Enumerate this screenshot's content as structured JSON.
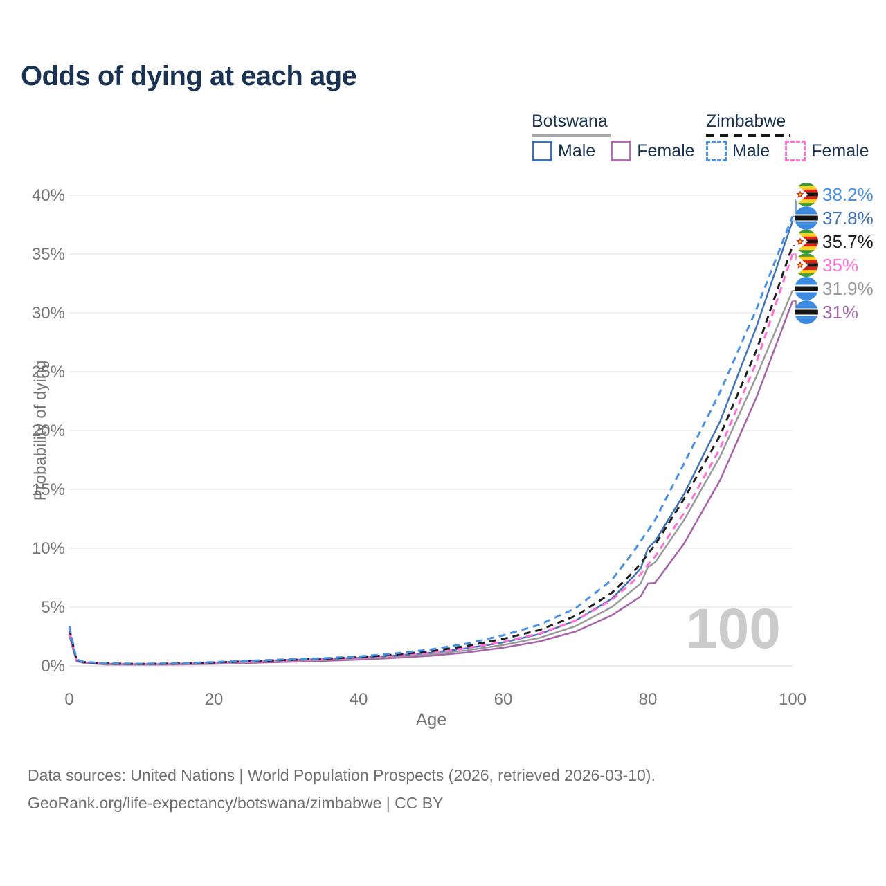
{
  "title": "Odds of dying at each age",
  "legend": {
    "groups": [
      {
        "country": "Botswana",
        "style": "solid",
        "items": [
          {
            "label": "Male",
            "color": "#4173b4"
          },
          {
            "label": "Female",
            "color": "#b070b0"
          }
        ]
      },
      {
        "country": "Zimbabwe",
        "style": "dashed",
        "items": [
          {
            "label": "Male",
            "color": "#4a90e2"
          },
          {
            "label": "Female",
            "color": "#ff6fd8"
          }
        ]
      }
    ]
  },
  "axes": {
    "y_title": "Probability of dying",
    "x_title": "Age",
    "y_ticks": [
      "0%",
      "5%",
      "10%",
      "15%",
      "20%",
      "25%",
      "30%",
      "35%",
      "40%"
    ],
    "x_ticks": [
      "0",
      "20",
      "40",
      "60",
      "80",
      "100"
    ]
  },
  "watermark": "100",
  "end_labels": [
    {
      "text": "38.2%",
      "value": 38.2,
      "color": "#4a90e2",
      "flag": "zimbabwe",
      "series": "Zimbabwe Male"
    },
    {
      "text": "37.8%",
      "value": 37.8,
      "color": "#4173b4",
      "flag": "botswana",
      "series": "Botswana Male"
    },
    {
      "text": "35.7%",
      "value": 35.7,
      "color": "#1f1f1f",
      "flag": "zimbabwe",
      "series": "Zimbabwe"
    },
    {
      "text": "35%",
      "value": 35.0,
      "color": "#ff6fd8",
      "flag": "zimbabwe",
      "series": "Zimbabwe Female"
    },
    {
      "text": "31.9%",
      "value": 31.9,
      "color": "#9a9a9a",
      "flag": "botswana",
      "series": "Botswana"
    },
    {
      "text": "31%",
      "value": 31.0,
      "color": "#a763a9",
      "flag": "botswana",
      "series": "Botswana Female"
    }
  ],
  "footer": {
    "line1": "Data sources: United Nations | World Population Prospects (2026, retrieved 2026-03-10).",
    "line2": "GeoRank.org/life-expectancy/botswana/zimbabwe | CC BY"
  },
  "chart_data": {
    "type": "line",
    "title": "Odds of dying at each age",
    "xlabel": "Age",
    "ylabel": "Probability of dying",
    "xlim": [
      0,
      100
    ],
    "ylim": [
      0,
      40
    ],
    "y_unit": "%",
    "x_ticks": [
      0,
      20,
      40,
      60,
      80,
      100
    ],
    "y_ticks_pct": [
      0,
      5,
      10,
      15,
      20,
      25,
      30,
      35,
      40
    ],
    "grid": true,
    "legend_position": "top-right",
    "ages": [
      0,
      1,
      2,
      5,
      10,
      15,
      20,
      25,
      30,
      35,
      40,
      45,
      50,
      55,
      60,
      65,
      70,
      75,
      78,
      79,
      80,
      81,
      85,
      90,
      95,
      100
    ],
    "series": [
      {
        "name": "Botswana Female",
        "country": "Botswana",
        "style": "solid",
        "color": "#a763a9",
        "values": [
          2.6,
          0.4,
          0.25,
          0.12,
          0.1,
          0.12,
          0.17,
          0.25,
          0.34,
          0.42,
          0.53,
          0.68,
          0.86,
          1.14,
          1.55,
          2.08,
          2.92,
          4.3,
          5.5,
          5.9,
          7.0,
          7.05,
          10.4,
          15.8,
          22.8,
          31.0
        ]
      },
      {
        "name": "Botswana",
        "country": "Botswana",
        "style": "solid",
        "color": "#9a9a9a",
        "values": [
          2.8,
          0.44,
          0.27,
          0.14,
          0.12,
          0.15,
          0.22,
          0.32,
          0.42,
          0.5,
          0.62,
          0.78,
          1.0,
          1.32,
          1.78,
          2.38,
          3.38,
          5.0,
          6.5,
          7.0,
          8.4,
          8.8,
          12.4,
          17.8,
          24.6,
          31.9
        ]
      },
      {
        "name": "Botswana Male",
        "country": "Botswana",
        "style": "solid",
        "color": "#4173b4",
        "values": [
          3.0,
          0.48,
          0.3,
          0.17,
          0.14,
          0.18,
          0.28,
          0.4,
          0.5,
          0.58,
          0.7,
          0.88,
          1.12,
          1.5,
          2.0,
          2.7,
          3.85,
          5.7,
          7.6,
          8.3,
          10.0,
          10.6,
          14.6,
          20.8,
          28.8,
          37.8
        ]
      },
      {
        "name": "Zimbabwe Female",
        "country": "Zimbabwe",
        "style": "dashed",
        "color": "#ff6fd8",
        "values": [
          3.0,
          0.46,
          0.3,
          0.18,
          0.14,
          0.17,
          0.24,
          0.34,
          0.45,
          0.55,
          0.68,
          0.87,
          1.12,
          1.52,
          2.05,
          2.75,
          3.85,
          5.6,
          7.2,
          7.8,
          8.6,
          9.3,
          13.0,
          18.5,
          25.8,
          35.0
        ]
      },
      {
        "name": "Zimbabwe",
        "country": "Zimbabwe",
        "style": "dashed",
        "color": "#1f1f1f",
        "values": [
          3.2,
          0.5,
          0.32,
          0.2,
          0.16,
          0.2,
          0.28,
          0.4,
          0.5,
          0.6,
          0.74,
          0.95,
          1.25,
          1.7,
          2.3,
          3.05,
          4.25,
          6.2,
          8.0,
          8.7,
          9.5,
          10.3,
          14.2,
          19.6,
          26.8,
          35.7
        ]
      },
      {
        "name": "Zimbabwe Male",
        "country": "Zimbabwe",
        "style": "dashed",
        "color": "#4a90e2",
        "values": [
          3.4,
          0.55,
          0.35,
          0.22,
          0.18,
          0.22,
          0.32,
          0.44,
          0.55,
          0.65,
          0.8,
          1.05,
          1.4,
          1.9,
          2.6,
          3.5,
          4.9,
          7.3,
          9.7,
          10.6,
          11.5,
          12.4,
          17.2,
          23.3,
          30.3,
          38.2
        ]
      }
    ]
  }
}
